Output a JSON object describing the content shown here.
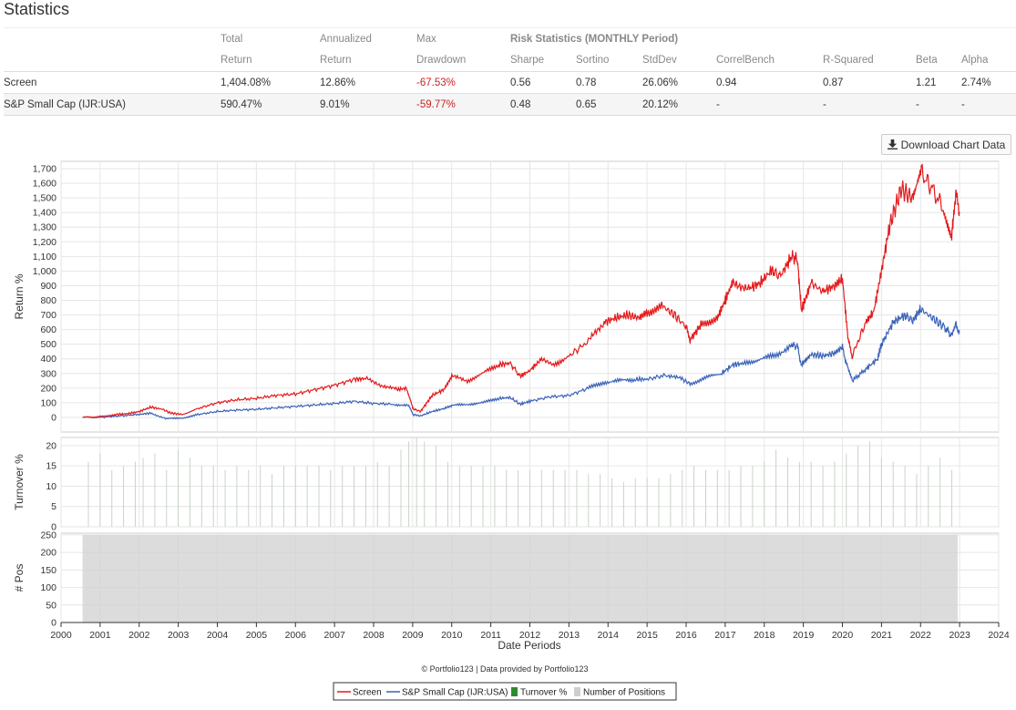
{
  "page": {
    "title": "Statistics"
  },
  "stats": {
    "header_row1": [
      "",
      "Total",
      "Annualized",
      "Max",
      "Risk Statistics (MONTHLY Period)"
    ],
    "header_row2": [
      "",
      "Return",
      "Return",
      "Drawdown",
      "Sharpe",
      "Sortino",
      "StdDev",
      "CorrelBench",
      "R-Squared",
      "Beta",
      "Alpha"
    ],
    "rows": [
      {
        "name": "Screen",
        "total_return": "1,404.08%",
        "annualized_return": "12.86%",
        "max_drawdown": "-67.53%",
        "sharpe": "0.56",
        "sortino": "0.78",
        "stddev": "26.06%",
        "correlbench": "0.94",
        "rsquared": "0.87",
        "beta": "1.21",
        "alpha": "2.74%"
      },
      {
        "name": "S&P Small Cap (IJR:USA)",
        "total_return": "590.47%",
        "annualized_return": "9.01%",
        "max_drawdown": "-59.77%",
        "sharpe": "0.48",
        "sortino": "0.65",
        "stddev": "20.12%",
        "correlbench": "-",
        "rsquared": "-",
        "beta": "-",
        "alpha": "-"
      }
    ]
  },
  "toolbar": {
    "download_label": "Download Chart Data",
    "download_icon": "download-icon"
  },
  "chart_data": {
    "type": "line",
    "xlabel": "Date Periods",
    "x_ticks": [
      "2000",
      "2001",
      "2002",
      "2003",
      "2004",
      "2005",
      "2006",
      "2007",
      "2008",
      "2009",
      "2010",
      "2011",
      "2012",
      "2013",
      "2014",
      "2015",
      "2016",
      "2017",
      "2018",
      "2019",
      "2020",
      "2021",
      "2022",
      "2023",
      "2024"
    ],
    "xlim": [
      2000,
      2024
    ],
    "credit": "© Portfolio123 | Data provided by Portfolio123",
    "colors": {
      "screen": "#e41a1c",
      "benchmark": "#3a62b8",
      "turnover": "#2e8b2e",
      "positions": "#d0d0d0",
      "grid": "#e6e6e6"
    },
    "panels": {
      "returns": {
        "ylabel": "Return %",
        "ylim": [
          -100,
          1750
        ],
        "yticks": [
          0,
          100,
          200,
          300,
          400,
          500,
          600,
          700,
          800,
          900,
          1000,
          1100,
          1200,
          1300,
          1400,
          1500,
          1600,
          1700
        ],
        "ytick_labels": [
          "0",
          "100",
          "200",
          "300",
          "400",
          "500",
          "600",
          "700",
          "800",
          "900",
          "1,000",
          "1,100",
          "1,200",
          "1,300",
          "1,400",
          "1,500",
          "1,600",
          "1,700"
        ]
      },
      "turnover": {
        "ylabel": "Turnover %",
        "ylim": [
          0,
          22
        ],
        "yticks": [
          0,
          5,
          10,
          15,
          20
        ],
        "ytick_labels": [
          "0",
          "5",
          "10",
          "15",
          "20"
        ]
      },
      "positions": {
        "ylabel": "# Pos",
        "ylim": [
          0,
          255
        ],
        "yticks": [
          0,
          50,
          100,
          150,
          200,
          250
        ],
        "ytick_labels": [
          "0",
          "50",
          "100",
          "150",
          "200",
          "250"
        ]
      }
    },
    "series": [
      {
        "name": "Screen",
        "points": [
          [
            2000.55,
            0
          ],
          [
            2001.0,
            5
          ],
          [
            2001.4,
            20
          ],
          [
            2001.7,
            25
          ],
          [
            2002.0,
            40
          ],
          [
            2002.3,
            70
          ],
          [
            2002.6,
            55
          ],
          [
            2002.8,
            30
          ],
          [
            2003.1,
            20
          ],
          [
            2003.5,
            60
          ],
          [
            2004.0,
            100
          ],
          [
            2004.5,
            120
          ],
          [
            2005.0,
            130
          ],
          [
            2005.5,
            150
          ],
          [
            2006.0,
            160
          ],
          [
            2006.5,
            190
          ],
          [
            2007.0,
            220
          ],
          [
            2007.5,
            260
          ],
          [
            2007.8,
            265
          ],
          [
            2008.2,
            220
          ],
          [
            2008.6,
            190
          ],
          [
            2008.85,
            200
          ],
          [
            2009.0,
            60
          ],
          [
            2009.2,
            40
          ],
          [
            2009.5,
            150
          ],
          [
            2009.8,
            190
          ],
          [
            2010.0,
            280
          ],
          [
            2010.4,
            250
          ],
          [
            2010.8,
            300
          ],
          [
            2011.2,
            360
          ],
          [
            2011.5,
            370
          ],
          [
            2011.75,
            280
          ],
          [
            2012.0,
            320
          ],
          [
            2012.3,
            400
          ],
          [
            2012.6,
            360
          ],
          [
            2013.0,
            420
          ],
          [
            2013.5,
            520
          ],
          [
            2013.9,
            650
          ],
          [
            2014.2,
            680
          ],
          [
            2014.5,
            700
          ],
          [
            2014.8,
            680
          ],
          [
            2015.0,
            720
          ],
          [
            2015.4,
            760
          ],
          [
            2015.7,
            700
          ],
          [
            2016.0,
            620
          ],
          [
            2016.1,
            530
          ],
          [
            2016.4,
            640
          ],
          [
            2016.8,
            680
          ],
          [
            2017.0,
            800
          ],
          [
            2017.2,
            930
          ],
          [
            2017.6,
            880
          ],
          [
            2017.9,
            920
          ],
          [
            2018.2,
            1010
          ],
          [
            2018.4,
            960
          ],
          [
            2018.7,
            1100
          ],
          [
            2018.85,
            1080
          ],
          [
            2018.95,
            730
          ],
          [
            2019.2,
            920
          ],
          [
            2019.5,
            860
          ],
          [
            2019.8,
            900
          ],
          [
            2020.0,
            950
          ],
          [
            2020.15,
            520
          ],
          [
            2020.25,
            420
          ],
          [
            2020.6,
            650
          ],
          [
            2020.8,
            720
          ],
          [
            2021.0,
            1000
          ],
          [
            2021.2,
            1300
          ],
          [
            2021.5,
            1560
          ],
          [
            2021.8,
            1500
          ],
          [
            2022.0,
            1680
          ],
          [
            2022.3,
            1560
          ],
          [
            2022.6,
            1420
          ],
          [
            2022.8,
            1260
          ],
          [
            2022.9,
            1510
          ],
          [
            2023.0,
            1404
          ]
        ]
      },
      {
        "name": "S&P Small Cap (IJR:USA)",
        "points": [
          [
            2000.55,
            0
          ],
          [
            2001.0,
            0
          ],
          [
            2001.5,
            10
          ],
          [
            2002.0,
            20
          ],
          [
            2002.3,
            30
          ],
          [
            2002.7,
            -10
          ],
          [
            2003.1,
            -5
          ],
          [
            2003.5,
            20
          ],
          [
            2004.0,
            40
          ],
          [
            2004.5,
            50
          ],
          [
            2005.0,
            55
          ],
          [
            2005.5,
            65
          ],
          [
            2006.0,
            75
          ],
          [
            2006.5,
            85
          ],
          [
            2007.0,
            95
          ],
          [
            2007.5,
            110
          ],
          [
            2008.0,
            95
          ],
          [
            2008.5,
            90
          ],
          [
            2008.9,
            80
          ],
          [
            2009.0,
            20
          ],
          [
            2009.2,
            10
          ],
          [
            2009.5,
            40
          ],
          [
            2009.8,
            60
          ],
          [
            2010.0,
            80
          ],
          [
            2010.4,
            90
          ],
          [
            2010.8,
            100
          ],
          [
            2011.2,
            130
          ],
          [
            2011.5,
            135
          ],
          [
            2011.75,
            90
          ],
          [
            2012.0,
            110
          ],
          [
            2012.5,
            140
          ],
          [
            2013.0,
            150
          ],
          [
            2013.5,
            200
          ],
          [
            2013.9,
            240
          ],
          [
            2014.3,
            250
          ],
          [
            2014.7,
            260
          ],
          [
            2015.0,
            260
          ],
          [
            2015.5,
            290
          ],
          [
            2015.9,
            260
          ],
          [
            2016.1,
            230
          ],
          [
            2016.5,
            270
          ],
          [
            2016.9,
            300
          ],
          [
            2017.2,
            360
          ],
          [
            2017.5,
            370
          ],
          [
            2017.9,
            400
          ],
          [
            2018.3,
            420
          ],
          [
            2018.7,
            500
          ],
          [
            2018.85,
            480
          ],
          [
            2018.95,
            360
          ],
          [
            2019.2,
            430
          ],
          [
            2019.5,
            420
          ],
          [
            2019.8,
            440
          ],
          [
            2020.0,
            480
          ],
          [
            2020.15,
            320
          ],
          [
            2020.25,
            250
          ],
          [
            2020.6,
            330
          ],
          [
            2020.9,
            400
          ],
          [
            2021.0,
            500
          ],
          [
            2021.3,
            650
          ],
          [
            2021.6,
            700
          ],
          [
            2021.8,
            660
          ],
          [
            2022.0,
            740
          ],
          [
            2022.3,
            680
          ],
          [
            2022.6,
            620
          ],
          [
            2022.8,
            560
          ],
          [
            2022.9,
            640
          ],
          [
            2023.0,
            590
          ]
        ]
      },
      {
        "name": "Turnover %",
        "points": [
          [
            2000.7,
            16
          ],
          [
            2001.0,
            18
          ],
          [
            2001.3,
            14
          ],
          [
            2001.6,
            15
          ],
          [
            2001.9,
            16
          ],
          [
            2002.1,
            17
          ],
          [
            2002.4,
            18
          ],
          [
            2002.7,
            14
          ],
          [
            2003.0,
            19
          ],
          [
            2003.3,
            17
          ],
          [
            2003.6,
            15
          ],
          [
            2003.9,
            15
          ],
          [
            2004.2,
            14
          ],
          [
            2004.5,
            15
          ],
          [
            2004.8,
            14
          ],
          [
            2005.1,
            15
          ],
          [
            2005.4,
            13
          ],
          [
            2005.7,
            15
          ],
          [
            2006.0,
            15
          ],
          [
            2006.3,
            15
          ],
          [
            2006.6,
            15
          ],
          [
            2006.9,
            14
          ],
          [
            2007.2,
            15
          ],
          [
            2007.5,
            15
          ],
          [
            2007.8,
            15
          ],
          [
            2008.1,
            16
          ],
          [
            2008.4,
            15
          ],
          [
            2008.7,
            19
          ],
          [
            2008.9,
            21
          ],
          [
            2009.1,
            22
          ],
          [
            2009.3,
            21
          ],
          [
            2009.6,
            20
          ],
          [
            2009.9,
            16
          ],
          [
            2010.2,
            15
          ],
          [
            2010.5,
            15
          ],
          [
            2010.8,
            15
          ],
          [
            2011.1,
            15
          ],
          [
            2011.4,
            14
          ],
          [
            2011.7,
            14
          ],
          [
            2012.0,
            14
          ],
          [
            2012.3,
            14
          ],
          [
            2012.6,
            14
          ],
          [
            2012.9,
            14
          ],
          [
            2013.2,
            14
          ],
          [
            2013.5,
            13
          ],
          [
            2013.8,
            13
          ],
          [
            2014.1,
            12
          ],
          [
            2014.4,
            11
          ],
          [
            2014.7,
            12
          ],
          [
            2015.0,
            12
          ],
          [
            2015.3,
            12
          ],
          [
            2015.6,
            13
          ],
          [
            2015.9,
            14
          ],
          [
            2016.2,
            15
          ],
          [
            2016.5,
            14
          ],
          [
            2016.8,
            14
          ],
          [
            2017.1,
            14
          ],
          [
            2017.4,
            15
          ],
          [
            2017.7,
            15
          ],
          [
            2018.0,
            16
          ],
          [
            2018.3,
            19
          ],
          [
            2018.6,
            17
          ],
          [
            2018.9,
            16
          ],
          [
            2019.2,
            16
          ],
          [
            2019.5,
            15
          ],
          [
            2019.8,
            16
          ],
          [
            2020.1,
            18
          ],
          [
            2020.4,
            20
          ],
          [
            2020.7,
            21
          ],
          [
            2021.0,
            17
          ],
          [
            2021.3,
            16
          ],
          [
            2021.6,
            15
          ],
          [
            2021.9,
            13
          ],
          [
            2022.2,
            15
          ],
          [
            2022.5,
            17
          ],
          [
            2022.8,
            14
          ]
        ]
      },
      {
        "name": "Number of Positions",
        "points": [
          [
            2000.55,
            250
          ],
          [
            2022.95,
            250
          ]
        ]
      }
    ]
  }
}
